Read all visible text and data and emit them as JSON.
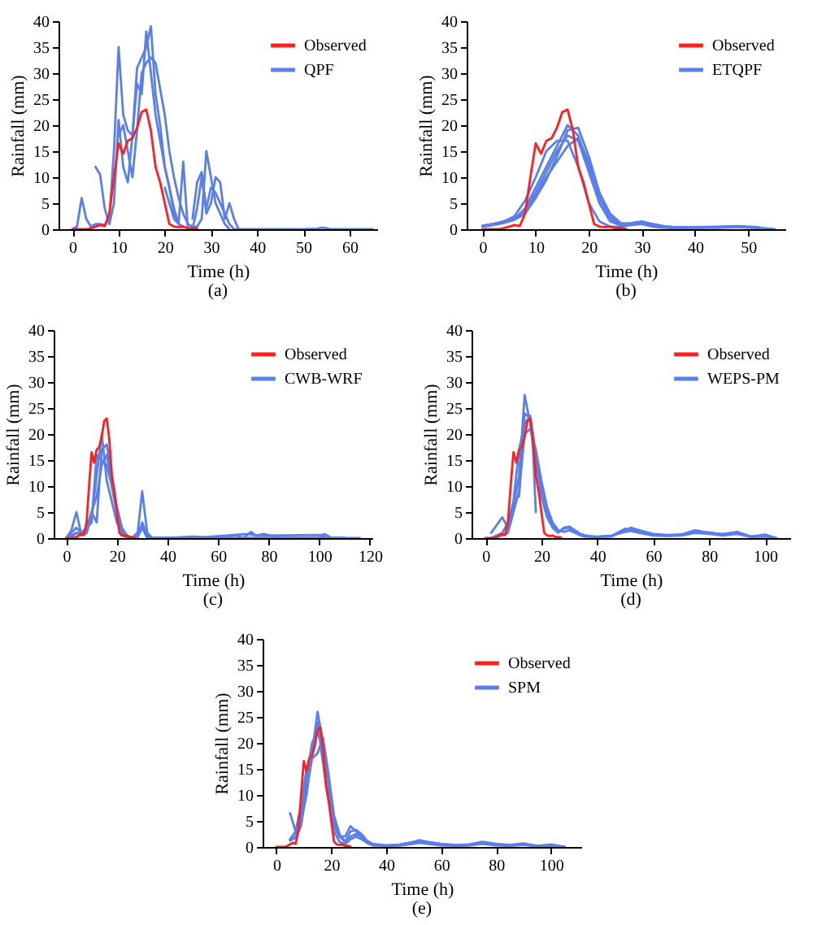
{
  "chart_data": [
    {
      "type": "line",
      "xlabel": "Time (h)",
      "ylabel": "Rainfall (mm)",
      "annotations": [
        "(a)"
      ],
      "xlim": [
        -3,
        66
      ],
      "xticks": [
        0,
        10,
        20,
        30,
        40,
        50,
        60
      ],
      "ylim": [
        0,
        40
      ],
      "yticks": [
        0,
        5,
        10,
        15,
        20,
        25,
        30,
        35,
        40
      ],
      "grid": false,
      "legend": "top right",
      "series": [
        {
          "name": "Observed",
          "color": "#ff1f1f",
          "x": [
            0,
            1,
            2,
            3,
            4,
            5,
            6,
            7,
            8,
            9,
            10,
            11,
            12,
            13,
            14,
            15,
            16,
            17,
            18,
            19,
            20,
            21,
            22,
            23,
            24,
            25,
            26,
            27
          ],
          "values": [
            0,
            0,
            0,
            0,
            0.2,
            0.5,
            0.8,
            0.6,
            3,
            10,
            16.5,
            14.5,
            17,
            17.5,
            19.5,
            22.5,
            23,
            19,
            12,
            9,
            5,
            1,
            0.5,
            0.4,
            0.5,
            0.2,
            0.2,
            0.1
          ]
        },
        {
          "name": "QPF",
          "color": "#5b7fea",
          "x": [
            0,
            1,
            2,
            3,
            4,
            5,
            6,
            7,
            8,
            9,
            10,
            11,
            12,
            13,
            14,
            15,
            16,
            17,
            18,
            19,
            20,
            21,
            22,
            23
          ],
          "values": [
            0,
            0.5,
            6,
            2,
            0.5,
            1,
            1,
            0.8,
            2,
            15,
            35,
            22,
            19,
            18,
            28,
            26,
            38,
            30,
            22,
            17,
            12,
            8,
            3,
            1
          ]
        },
        {
          "color": "#5b7fea",
          "x": [
            5,
            6,
            7,
            8,
            9,
            10,
            11,
            12,
            13,
            14,
            15,
            16,
            17,
            18,
            19,
            20,
            21,
            22,
            23,
            24
          ],
          "values": [
            12,
            10.5,
            4,
            1,
            5,
            21,
            12,
            9,
            18,
            31,
            33,
            35,
            39,
            26,
            20,
            12,
            8,
            4,
            1,
            0.5
          ]
        },
        {
          "color": "#5b7fea",
          "x": [
            10,
            11,
            12,
            13,
            14,
            15,
            16,
            17,
            18,
            19,
            20,
            21,
            22,
            23,
            24,
            25,
            26,
            27,
            28,
            29,
            30,
            31,
            32,
            33,
            34
          ],
          "values": [
            18,
            20,
            15,
            10,
            19,
            30,
            32,
            33,
            32,
            27,
            22,
            15,
            10,
            6,
            3,
            1,
            0.5,
            0.5,
            2,
            15,
            10,
            5,
            3,
            1,
            0
          ]
        },
        {
          "color": "#5b7fea",
          "x": [
            20,
            21,
            22,
            23,
            24,
            25,
            26,
            27,
            28,
            29,
            30,
            31,
            32,
            33,
            34,
            35,
            36
          ],
          "values": [
            8,
            5,
            2,
            1,
            13,
            0,
            0,
            4,
            10,
            3,
            5,
            10,
            9,
            2,
            5,
            2,
            0
          ]
        },
        {
          "color": "#5b7fea",
          "x": [
            26,
            27,
            28,
            29,
            30,
            31,
            32,
            33,
            34,
            35,
            40,
            45,
            50,
            53,
            54,
            55,
            56,
            60,
            65
          ],
          "values": [
            2,
            9,
            11,
            4,
            8,
            7,
            5,
            3,
            1,
            0,
            0,
            0,
            0,
            0.1,
            0.3,
            0.2,
            0,
            0,
            0
          ]
        }
      ]
    },
    {
      "type": "line",
      "xlabel": "Time (h)",
      "ylabel": "Rainfall (mm)",
      "annotations": [
        "(b)"
      ],
      "xlim": [
        -3,
        57
      ],
      "xticks": [
        0,
        10,
        20,
        30,
        40,
        50
      ],
      "ylim": [
        0,
        40
      ],
      "yticks": [
        0,
        5,
        10,
        15,
        20,
        25,
        30,
        35,
        40
      ],
      "grid": false,
      "legend": "top right",
      "series": [
        {
          "name": "Observed",
          "color": "#ff1f1f",
          "x": [
            0,
            1,
            2,
            3,
            4,
            5,
            6,
            7,
            8,
            9,
            10,
            11,
            12,
            13,
            14,
            15,
            16,
            17,
            18,
            19,
            20,
            21,
            22,
            23,
            24,
            25,
            26,
            27
          ],
          "values": [
            0,
            0,
            0,
            0,
            0.2,
            0.5,
            0.8,
            0.6,
            3,
            10,
            16.5,
            14.5,
            17,
            17.5,
            19.5,
            22.5,
            23,
            19,
            12,
            9,
            5,
            1,
            0.5,
            0.4,
            0.5,
            0.2,
            0.2,
            0.1
          ]
        },
        {
          "name": "ETQPF",
          "color": "#5b7fea",
          "x": [
            0,
            2,
            4,
            6,
            8,
            10,
            12,
            14,
            16,
            18,
            20,
            22,
            24,
            26,
            28,
            30,
            32,
            34,
            36,
            40,
            44,
            48,
            52
          ],
          "values": [
            0.7,
            1,
            1.5,
            2,
            3.5,
            7,
            11,
            15,
            18,
            17,
            11,
            5,
            1.5,
            0.8,
            1,
            1.2,
            0.8,
            0.5,
            0.3,
            0.3,
            0.4,
            0.5,
            0.3
          ]
        },
        {
          "color": "#5b7fea",
          "x": [
            0,
            2,
            4,
            6,
            8,
            10,
            12,
            14,
            16,
            18,
            20,
            22,
            24,
            26,
            28,
            30,
            32,
            34,
            36,
            40,
            44,
            48,
            52
          ],
          "values": [
            0.7,
            1,
            1.5,
            2.5,
            5.5,
            10,
            15,
            17,
            17,
            12,
            5,
            1.5,
            0.5,
            0.5,
            0.8,
            1,
            0.5,
            0.3,
            0.2,
            0.3,
            0.3,
            0.4,
            0.2
          ]
        },
        {
          "color": "#5b7fea",
          "x": [
            0,
            2,
            4,
            6,
            8,
            10,
            12,
            14,
            16,
            18,
            20,
            22,
            24,
            26,
            28,
            30,
            32,
            34,
            36,
            40,
            44,
            48,
            52
          ],
          "values": [
            0.5,
            0.8,
            1.2,
            1.8,
            3,
            6,
            9.5,
            14,
            19,
            19.5,
            14,
            7,
            2.5,
            1,
            1.2,
            1.5,
            1,
            0.6,
            0.4,
            0.4,
            0.5,
            0.6,
            0.4
          ]
        },
        {
          "color": "#5b7fea",
          "x": [
            0,
            2,
            4,
            6,
            8,
            10,
            12,
            14,
            16,
            18,
            20,
            22,
            24,
            26,
            28,
            30,
            32,
            34,
            36,
            40,
            44,
            48,
            52
          ],
          "values": [
            0.6,
            1,
            1.4,
            2,
            4,
            8,
            12,
            16,
            20,
            18,
            12,
            6,
            2,
            1,
            1,
            1.3,
            0.9,
            0.5,
            0.3,
            0.3,
            0.4,
            0.5,
            0.3
          ]
        },
        {
          "color": "#5b7fea",
          "x": [
            0,
            2,
            4,
            6,
            8,
            10,
            12,
            14,
            16,
            18,
            20,
            22,
            24,
            26,
            28,
            30,
            32,
            34,
            36,
            40,
            44,
            48,
            52,
            55
          ],
          "values": [
            0.6,
            0.9,
            1.3,
            2,
            3,
            6.5,
            10,
            13,
            16,
            17.5,
            13,
            7,
            3,
            1.2,
            1,
            1.3,
            1,
            0.6,
            0.4,
            0.3,
            0.3,
            0.4,
            0.3,
            0
          ]
        }
      ]
    },
    {
      "type": "line",
      "xlabel": "Time (h)",
      "ylabel": "Rainfall (mm)",
      "annotations": [
        "(c)"
      ],
      "xlim": [
        -5,
        121
      ],
      "xticks": [
        0,
        20,
        40,
        60,
        80,
        100,
        120
      ],
      "ylim": [
        0,
        40
      ],
      "yticks": [
        0,
        5,
        10,
        15,
        20,
        25,
        30,
        35,
        40
      ],
      "grid": false,
      "legend": "top right",
      "series": [
        {
          "name": "Observed",
          "color": "#ff1f1f",
          "x": [
            0,
            1,
            2,
            3,
            4,
            5,
            6,
            7,
            8,
            9,
            10,
            11,
            12,
            13,
            14,
            15,
            16,
            17,
            18,
            19,
            20,
            21,
            22,
            23,
            24,
            25,
            26,
            27
          ],
          "values": [
            0,
            0,
            0,
            0,
            0.2,
            0.5,
            0.8,
            0.6,
            3,
            10,
            16.5,
            14.5,
            17,
            17.5,
            19.5,
            22.5,
            23,
            19,
            12,
            9,
            5,
            1,
            0.5,
            0.4,
            0.5,
            0.2,
            0.2,
            0.1
          ]
        },
        {
          "name": "CWB-WRF",
          "color": "#5b7fea",
          "x": [
            0,
            2,
            4,
            6,
            8,
            10,
            12,
            14,
            16,
            18,
            20,
            22,
            24,
            26,
            28,
            30,
            32,
            34,
            40,
            50,
            60,
            67,
            70,
            73,
            75,
            78,
            85,
            100,
            102,
            105,
            116
          ],
          "values": [
            0,
            1.5,
            5,
            0.5,
            2,
            5,
            3,
            17,
            18,
            12,
            6,
            2,
            0.5,
            0,
            0,
            9,
            1,
            0,
            0,
            0.3,
            0,
            0.6,
            0,
            1.2,
            0.5,
            0.8,
            0,
            0,
            0.8,
            0,
            0
          ]
        },
        {
          "color": "#5b7fea",
          "x": [
            0,
            2,
            4,
            6,
            8,
            10,
            12,
            14,
            16,
            18,
            20,
            22,
            24,
            26,
            28,
            30,
            32,
            34,
            40,
            50,
            60,
            70,
            80,
            90,
            100,
            110
          ],
          "values": [
            0,
            1,
            2,
            1,
            1,
            4,
            12,
            20,
            11,
            7,
            3,
            1,
            0,
            0,
            0,
            3,
            0.5,
            0,
            0,
            0,
            0,
            0,
            0,
            0,
            0,
            0
          ]
        },
        {
          "color": "#5b7fea",
          "x": [
            0,
            2,
            4,
            6,
            8,
            10,
            12,
            14,
            16,
            18,
            20,
            22,
            24,
            26,
            28,
            30,
            32,
            34,
            40,
            50,
            60,
            70,
            80,
            90,
            100,
            110
          ],
          "values": [
            0,
            0.5,
            1,
            1,
            2,
            3,
            16,
            15,
            14,
            10,
            5,
            1.5,
            0.3,
            0,
            0,
            2,
            0.5,
            0,
            0,
            0,
            0,
            0,
            0,
            0,
            0,
            0
          ]
        },
        {
          "color": "#5b7fea",
          "x": [
            2,
            4,
            6,
            8,
            10,
            12,
            14,
            16,
            18,
            20,
            22,
            24,
            26,
            30,
            32,
            35,
            50,
            72,
            74,
            78,
            101,
            103,
            110
          ],
          "values": [
            0,
            1,
            0.5,
            1,
            5,
            8,
            14,
            16,
            10,
            5,
            1,
            0,
            0,
            2,
            0,
            0,
            0,
            0.8,
            0.6,
            0.5,
            0.6,
            0,
            0
          ]
        }
      ]
    },
    {
      "type": "line",
      "xlabel": "Time (h)",
      "ylabel": "Rainfall (mm)",
      "annotations": [
        "(d)"
      ],
      "xlim": [
        -5,
        109
      ],
      "xticks": [
        0,
        20,
        40,
        60,
        80,
        100
      ],
      "ylim": [
        0,
        40
      ],
      "yticks": [
        0,
        5,
        10,
        15,
        20,
        25,
        30,
        35,
        40
      ],
      "grid": false,
      "legend": "top right",
      "series": [
        {
          "name": "Observed",
          "color": "#ff1f1f",
          "x": [
            0,
            1,
            2,
            3,
            4,
            5,
            6,
            7,
            8,
            9,
            10,
            11,
            12,
            13,
            14,
            15,
            16,
            17,
            18,
            19,
            20,
            21,
            22,
            23,
            24,
            25,
            26,
            27
          ],
          "values": [
            0,
            0,
            0,
            0,
            0.2,
            0.5,
            0.8,
            0.6,
            3,
            10,
            16.5,
            14.5,
            17,
            17.5,
            19.5,
            22.5,
            23,
            19,
            12,
            9,
            5,
            1,
            0.5,
            0.4,
            0.5,
            0.2,
            0.2,
            0.1
          ]
        },
        {
          "name": "WEPS-PM",
          "color": "#5b7fea",
          "x": [
            2,
            4,
            6,
            8,
            10,
            12,
            14,
            16,
            18,
            20,
            22,
            24,
            26,
            28,
            30,
            32,
            34,
            36,
            40,
            45,
            50,
            52,
            55,
            60,
            65,
            70,
            75,
            80,
            85,
            90,
            95,
            100,
            104
          ],
          "values": [
            1,
            2.5,
            4,
            2,
            6,
            12,
            27.5,
            22,
            15,
            8,
            4,
            2,
            1,
            2,
            2.2,
            1.5,
            0.8,
            0.5,
            0.2,
            0.3,
            1.5,
            2,
            1.5,
            0.8,
            0.6,
            0.7,
            1.5,
            1,
            0.8,
            1.2,
            0.3,
            0.7,
            0
          ]
        },
        {
          "color": "#5b7fea",
          "x": [
            2,
            4,
            6,
            8,
            10,
            12,
            14,
            16,
            18,
            20,
            22,
            24,
            26,
            28,
            30,
            32,
            34,
            36,
            40,
            45,
            50,
            52,
            55,
            60,
            65,
            70,
            75,
            80,
            85,
            90,
            95,
            100,
            104
          ],
          "values": [
            0,
            0.5,
            1,
            3,
            7,
            17,
            22,
            23.5,
            16,
            10,
            5,
            2.5,
            1.2,
            1.8,
            2,
            1.2,
            0.6,
            0.3,
            0.2,
            0.4,
            1.8,
            1.6,
            1.2,
            0.6,
            0.5,
            0.6,
            1.2,
            1.1,
            0.6,
            1,
            0.3,
            0.5,
            0
          ]
        },
        {
          "color": "#5b7fea",
          "x": [
            2,
            4,
            6,
            8,
            10,
            12,
            14,
            16,
            18,
            20,
            22,
            24,
            26,
            28,
            30,
            32,
            34,
            36,
            40,
            45,
            50,
            52,
            55,
            60,
            65,
            70,
            75,
            80,
            85,
            90,
            95,
            100,
            104
          ],
          "values": [
            0,
            0.3,
            0.5,
            1,
            5,
            9,
            20,
            21,
            17,
            11,
            6,
            3,
            1.5,
            1.2,
            1.5,
            1,
            0.5,
            0.3,
            0.3,
            0.5,
            1.2,
            1.4,
            1,
            0.5,
            0.4,
            0.5,
            1,
            0.8,
            0.5,
            0.8,
            0.2,
            0.3,
            0
          ]
        },
        {
          "color": "#5b7fea",
          "x": [
            12,
            14,
            16,
            17,
            18
          ],
          "values": [
            8,
            24,
            23,
            17,
            5
          ]
        }
      ]
    },
    {
      "type": "line",
      "xlabel": "Time (h)",
      "ylabel": "Rainfall (mm)",
      "annotations": [
        "(e)"
      ],
      "xlim": [
        -5,
        111
      ],
      "xticks": [
        0,
        20,
        40,
        60,
        80,
        100
      ],
      "ylim": [
        0,
        40
      ],
      "yticks": [
        0,
        5,
        10,
        15,
        20,
        25,
        30,
        35,
        40
      ],
      "grid": false,
      "legend": "top right",
      "series": [
        {
          "name": "Observed",
          "color": "#ff1f1f",
          "x": [
            0,
            1,
            2,
            3,
            4,
            5,
            6,
            7,
            8,
            9,
            10,
            11,
            12,
            13,
            14,
            15,
            16,
            17,
            18,
            19,
            20,
            21,
            22,
            23,
            24,
            25,
            26,
            27
          ],
          "values": [
            0,
            0,
            0,
            0,
            0.2,
            0.5,
            0.8,
            0.6,
            3,
            10,
            16.5,
            14.5,
            17,
            17.5,
            19.5,
            22.5,
            23,
            19,
            12,
            9,
            5,
            1,
            0.5,
            0.4,
            0.5,
            0.2,
            0.2,
            0.1
          ]
        },
        {
          "name": "SPM",
          "color": "#5b7fea",
          "x": [
            5,
            7,
            9,
            11,
            13,
            15,
            17,
            19,
            21,
            23,
            25,
            27,
            29,
            31,
            33,
            35,
            40,
            45,
            50,
            52,
            55,
            60,
            65,
            70,
            75,
            80,
            85,
            90,
            95,
            100,
            105
          ],
          "values": [
            6.5,
            3,
            5,
            10,
            18,
            26,
            20,
            10,
            4,
            2,
            2,
            4,
            3,
            2,
            1,
            0.5,
            0.3,
            0.5,
            1,
            1.3,
            1,
            0.6,
            0.4,
            0.5,
            1,
            0.6,
            0.4,
            0.7,
            0.2,
            0.5,
            0
          ]
        },
        {
          "color": "#5b7fea",
          "x": [
            5,
            7,
            9,
            11,
            13,
            15,
            17,
            19,
            21,
            23,
            25,
            27,
            29,
            31,
            33,
            35,
            40,
            45,
            50,
            52,
            55,
            60,
            65,
            70,
            75,
            80,
            85,
            90,
            95,
            100,
            105
          ],
          "values": [
            1.5,
            2,
            6,
            13,
            20,
            22,
            19,
            12,
            5,
            2,
            1,
            3,
            3.3,
            2.5,
            1.2,
            0.6,
            0.3,
            0.4,
            0.9,
            1.1,
            0.9,
            0.5,
            0.3,
            0.4,
            0.9,
            0.5,
            0.3,
            0.6,
            0.2,
            0.3,
            0
          ]
        },
        {
          "color": "#5b7fea",
          "x": [
            5,
            7,
            9,
            11,
            13,
            15,
            17,
            19,
            21,
            23,
            25,
            27,
            29,
            31,
            33,
            35,
            40,
            45,
            50,
            52,
            55,
            60,
            65,
            70,
            75,
            80,
            85,
            90,
            95,
            100,
            105
          ],
          "values": [
            1.2,
            1.8,
            4,
            11,
            17,
            18,
            21,
            14,
            6,
            2.5,
            1,
            2,
            2.5,
            2,
            1,
            0.5,
            0.2,
            0.3,
            0.7,
            0.9,
            0.7,
            0.4,
            0.3,
            0.3,
            0.7,
            0.4,
            0.3,
            0.5,
            0.1,
            0.2,
            0
          ]
        },
        {
          "color": "#5b7fea",
          "x": [
            5,
            7,
            9,
            11,
            13,
            15,
            17,
            19,
            21,
            23,
            25,
            27,
            29,
            31,
            33,
            35,
            40,
            45,
            50,
            52,
            55,
            60,
            65,
            70,
            75,
            80,
            85,
            90,
            95,
            100,
            105
          ],
          "values": [
            1.5,
            3,
            8,
            15,
            19,
            24,
            16,
            9,
            3,
            1,
            0.5,
            1.5,
            2,
            1.5,
            0.8,
            0.3,
            0.2,
            0.3,
            0.6,
            0.8,
            0.6,
            0.3,
            0.2,
            0.3,
            0.6,
            0.3,
            0.2,
            0.4,
            0.1,
            0.2,
            0
          ]
        }
      ]
    }
  ]
}
